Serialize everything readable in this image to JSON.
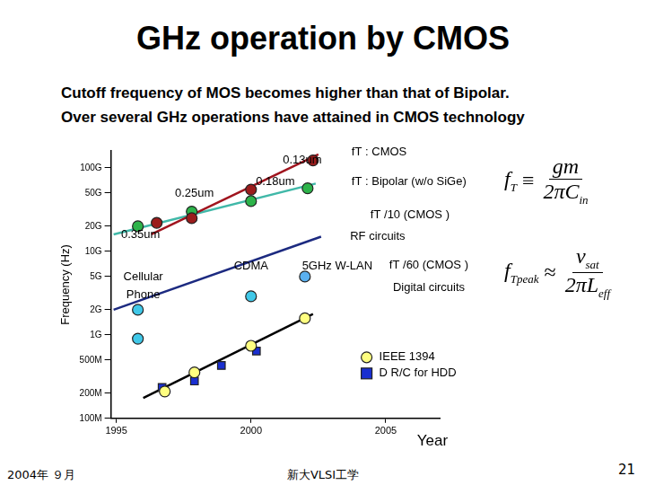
{
  "title": "GHz operation by CMOS",
  "subtitle": [
    "Cutoff frequency of MOS becomes higher than that of Bipolar.",
    "Over several GHz operations have attained in CMOS technology"
  ],
  "formulas": [
    {
      "lhs": "f",
      "lhs_sub": "T",
      "op": "≡",
      "num": "gm",
      "num_sub": "",
      "den": "2π",
      "den_var": "C",
      "den_sub": "in"
    },
    {
      "lhs": "f",
      "lhs_sub": "Tpeak",
      "op": "≈",
      "num": "v",
      "num_sub": "sat",
      "den": "2π",
      "den_var": "L",
      "den_sub": "eff"
    }
  ],
  "footer": {
    "date": "2004年 ９月",
    "center": "新大VLSI工学",
    "page": "21"
  },
  "chart_data": {
    "type": "scatter",
    "x_label": "Year",
    "y_label": "Frequency (Hz)",
    "log": "y",
    "grid": false,
    "xlim": [
      1994.8,
      2007
    ],
    "xticks": [
      1995,
      2000,
      2005
    ],
    "ylim": [
      100000000,
      160000000000
    ],
    "yticks": [
      {
        "value": 100000000,
        "label": "100M"
      },
      {
        "value": 200000000,
        "label": "200M"
      },
      {
        "value": 500000000,
        "label": "500M"
      },
      {
        "value": 1000000000,
        "label": "1G"
      },
      {
        "value": 2000000000,
        "label": "2G"
      },
      {
        "value": 5000000000,
        "label": "5G"
      },
      {
        "value": 10000000000,
        "label": "10G"
      },
      {
        "value": 20000000000,
        "label": "20G"
      },
      {
        "value": 50000000000,
        "label": "50G"
      },
      {
        "value": 100000000000,
        "label": "100G"
      }
    ],
    "series": [
      {
        "name": "fT : CMOS",
        "color": "#9b1c1c",
        "marker": "circle",
        "line_style": "none",
        "x": [
          1996.5,
          1997.8,
          2000.0,
          2002.3
        ],
        "values": [
          22000000000,
          25000000000,
          55000000000,
          123000000000
        ]
      },
      {
        "name": "fT : Bipolar (w/o SiGe)",
        "color": "#2db34a",
        "marker": "circle",
        "line_style": "none",
        "x": [
          1995.8,
          1997.8,
          2000.0,
          2002.1
        ],
        "values": [
          20000000000,
          30000000000,
          40000000000,
          57000000000
        ]
      },
      {
        "color": "#a0141e",
        "marker": "none",
        "line_style": "solid",
        "x": [
          1996.3,
          2002.5
        ],
        "values": [
          16000000000,
          145000000000
        ]
      },
      {
        "color": "#40b8a8",
        "marker": "none",
        "line_style": "solid",
        "x": [
          1994.9,
          2002.4
        ],
        "values": [
          16000000000,
          65000000000
        ]
      },
      {
        "name": "fT /10 (CMOS )",
        "color": "#1c2a80",
        "marker": "none",
        "line_style": "solid",
        "x": [
          1994.9,
          2002.6
        ],
        "values": [
          2000000000,
          15000000000
        ]
      },
      {
        "color": "#40c8e8",
        "marker": "circle",
        "line_style": "none",
        "x": [
          1995.8,
          1995.8,
          2000.0
        ],
        "values": [
          2000000000,
          900000000,
          2900000000
        ]
      },
      {
        "color": "#5ab0f0",
        "marker": "circle",
        "line_style": "none",
        "x": [
          2002.0
        ],
        "values": [
          5000000000
        ]
      },
      {
        "name": "fT /60 (CMOS )",
        "color": "#000000",
        "marker": "none",
        "line_style": "solid",
        "x": [
          1996.0,
          2002.3
        ],
        "values": [
          175000000,
          1780000000
        ]
      },
      {
        "name": "IEEE 1394",
        "color": "#ffff80",
        "marker": "circle",
        "line_style": "none",
        "x": [
          1996.8,
          1997.9,
          2000.0,
          2002.0
        ],
        "values": [
          210000000,
          355000000,
          740000000,
          1580000000
        ]
      },
      {
        "name": "D R/C for HDD",
        "color": "#1a2fd0",
        "marker": "square",
        "line_style": "none",
        "x": [
          1996.7,
          1997.9,
          1998.9,
          2000.2
        ],
        "values": [
          235000000,
          280000000,
          430000000,
          640000000
        ]
      }
    ],
    "annotations": [
      {
        "text": "0.13um",
        "x": 2001.9,
        "y": 123000000000
      },
      {
        "text": "0.18um",
        "x": 2000.9,
        "y": 68000000000
      },
      {
        "text": "0.25um",
        "x": 1997.9,
        "y": 50000000000
      },
      {
        "text": "0.35um",
        "x": 1995.9,
        "y": 15700000000
      },
      {
        "text": "Cellular",
        "x": 1996.0,
        "y": 4900000000
      },
      {
        "text": "Phone",
        "x": 1996.0,
        "y": 3000000000
      },
      {
        "text": "CDMA",
        "x": 2000.0,
        "y": 6600000000
      },
      {
        "text": "5GHz W-LAN",
        "x": 2003.2,
        "y": 6600000000
      },
      {
        "text": "RF circuits",
        "x": 2004.7,
        "y": 15000000000
      },
      {
        "text": "Digital circuits",
        "x": 2006.6,
        "y": 3700000000
      }
    ]
  }
}
